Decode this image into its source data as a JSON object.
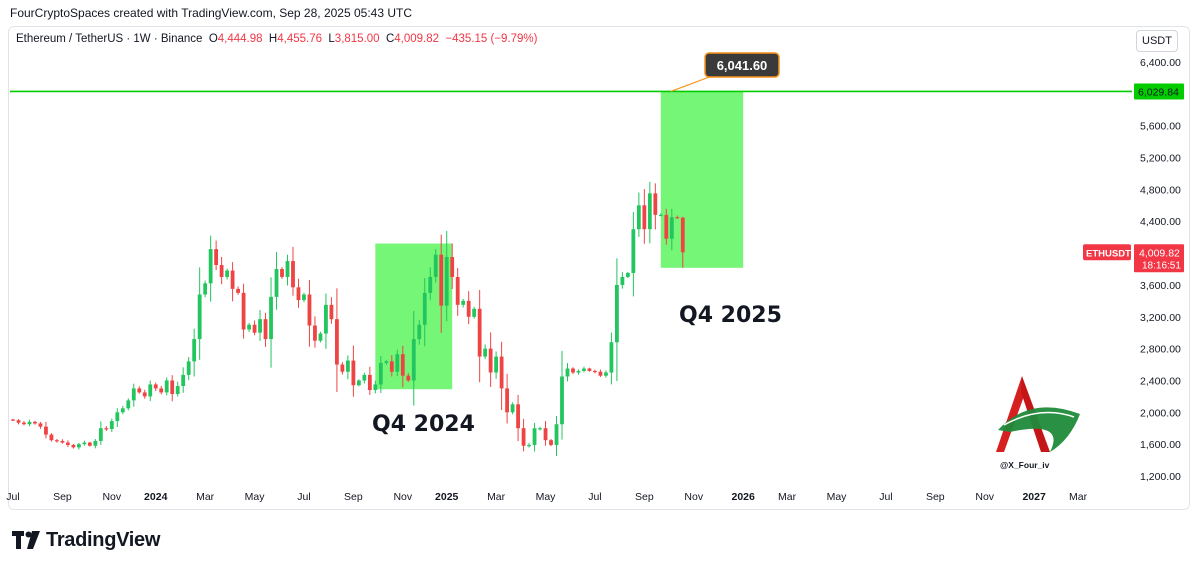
{
  "credit": "FourCryptoSpaces created with TradingView.com, Sep 28, 2025 05:43 UTC",
  "header": {
    "symbol": "Ethereum / TetherUS · 1W · Binance",
    "o_label": "O",
    "o_value": "4,444.98",
    "h_label": "H",
    "h_value": "4,455.76",
    "l_label": "L",
    "l_value": "3,815.00",
    "c_label": "C",
    "c_value": "4,009.82",
    "change": "−435.15 (−9.79%)"
  },
  "unit": "USDT",
  "brand": "TradingView",
  "watermark": "@X_Four_iv",
  "chart_data": {
    "type": "candlestick",
    "y_ticks": [
      "6,400.00",
      "6,000.00",
      "5,600.00",
      "5,200.00",
      "4,800.00",
      "4,400.00",
      "4,000.00",
      "3,600.00",
      "3,200.00",
      "2,800.00",
      "2,400.00",
      "2,000.00",
      "1,600.00",
      "1,200.00"
    ],
    "y_tick_values": [
      6400,
      6000,
      5600,
      5200,
      4800,
      4400,
      4000,
      3600,
      3200,
      2800,
      2400,
      2000,
      1600,
      1200
    ],
    "ylim": [
      1100,
      6650
    ],
    "x_ticks": [
      {
        "label": "Jul",
        "week": 0,
        "bold": false
      },
      {
        "label": "Sep",
        "week": 9,
        "bold": false
      },
      {
        "label": "Nov",
        "week": 18,
        "bold": false
      },
      {
        "label": "2024",
        "week": 26,
        "bold": true
      },
      {
        "label": "Mar",
        "week": 35,
        "bold": false
      },
      {
        "label": "May",
        "week": 44,
        "bold": false
      },
      {
        "label": "Jul",
        "week": 53,
        "bold": false
      },
      {
        "label": "Sep",
        "week": 62,
        "bold": false
      },
      {
        "label": "Nov",
        "week": 71,
        "bold": false
      },
      {
        "label": "2025",
        "week": 79,
        "bold": true
      },
      {
        "label": "Mar",
        "week": 88,
        "bold": false
      },
      {
        "label": "May",
        "week": 97,
        "bold": false
      },
      {
        "label": "Jul",
        "week": 106,
        "bold": false
      },
      {
        "label": "Sep",
        "week": 115,
        "bold": false
      },
      {
        "label": "Nov",
        "week": 124,
        "bold": false
      },
      {
        "label": "2026",
        "week": 133,
        "bold": true
      },
      {
        "label": "Mar",
        "week": 141,
        "bold": false
      },
      {
        "label": "May",
        "week": 150,
        "bold": false
      },
      {
        "label": "Jul",
        "week": 159,
        "bold": false
      },
      {
        "label": "Sep",
        "week": 168,
        "bold": false
      },
      {
        "label": "Nov",
        "week": 177,
        "bold": false
      },
      {
        "label": "2027",
        "week": 186,
        "bold": true
      },
      {
        "label": "Mar",
        "week": 194,
        "bold": false
      }
    ],
    "closes": [
      1900,
      1870,
      1850,
      1880,
      1860,
      1820,
      1720,
      1650,
      1640,
      1620,
      1590,
      1560,
      1600,
      1620,
      1580,
      1640,
      1800,
      1790,
      1890,
      2000,
      2050,
      2150,
      2300,
      2250,
      2200,
      2350,
      2300,
      2250,
      2400,
      2230,
      2330,
      2470,
      2640,
      2920,
      3480,
      3620,
      4050,
      3850,
      3700,
      3780,
      3550,
      3500,
      3040,
      3100,
      3000,
      3170,
      2920,
      3450,
      3800,
      3700,
      3900,
      3570,
      3410,
      3480,
      3090,
      2900,
      2990,
      3350,
      3170,
      2600,
      2510,
      2650,
      2340,
      2400,
      2470,
      2280,
      2350,
      2620,
      2640,
      2510,
      2730,
      2460,
      2400,
      2920,
      3100,
      3500,
      3700,
      3980,
      3340,
      3950,
      3700,
      3350,
      3400,
      3200,
      3300,
      2700,
      2800,
      2500,
      2700,
      2300,
      2000,
      2100,
      1800,
      1580,
      1590,
      1800,
      1800,
      1650,
      1590,
      1850,
      2450,
      2550,
      2500,
      2520,
      2550,
      2520,
      2510,
      2460,
      2500,
      2880,
      3600,
      3700,
      3750,
      4300,
      4600,
      4300,
      4750,
      4480,
      4480,
      4180,
      4450,
      4444.98,
      4009.82
    ],
    "last_open": 4444.98,
    "last_high": 4455.76,
    "last_low": 3815.0,
    "last_close": 4009.82,
    "target_line": {
      "value": 6029.84,
      "label": "6,029.84",
      "color": "#00cc00"
    },
    "target_callout": "6,041.60",
    "last_price_label": {
      "name": "ETHUSDT",
      "price": "4,009.82",
      "countdown": "18:16:51",
      "color": "#f23645"
    },
    "zones": [
      {
        "label": "Q4 2024",
        "week_start": 66,
        "week_end": 80,
        "low": 2290,
        "high": 4120
      },
      {
        "label": "Q4 2025",
        "week_start": 118,
        "week_end": 133,
        "low": 3815,
        "high": 6029.84
      }
    ],
    "colors": {
      "up": "#22c55e",
      "down": "#ef4444",
      "zone": "#5ef55e"
    }
  }
}
